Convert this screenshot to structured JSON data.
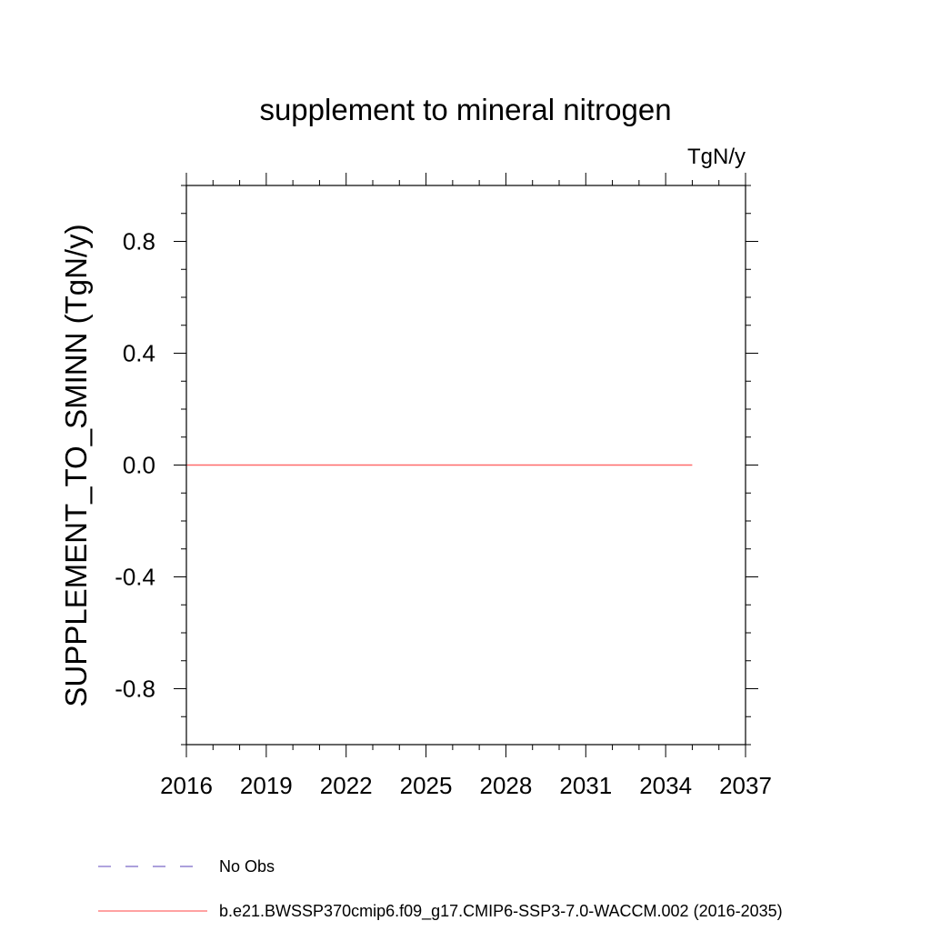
{
  "chart_data": {
    "type": "line",
    "title": "supplement to mineral nitrogen",
    "units": "TgN/y",
    "xlabel": "",
    "ylabel": "SUPPLEMENT_TO_SMINN  (TgN/y)",
    "xlim": [
      2016,
      2037
    ],
    "ylim": [
      -1.0,
      1.0
    ],
    "x_ticks": [
      2016,
      2019,
      2022,
      2025,
      2028,
      2031,
      2034,
      2037
    ],
    "x_tick_labels": [
      "2016",
      "2019",
      "2022",
      "2025",
      "2028",
      "2031",
      "2034",
      "2037"
    ],
    "y_ticks": [
      0.8,
      0.4,
      0.0,
      -0.4,
      -0.8
    ],
    "y_tick_labels": [
      "0.8",
      "0.4",
      "0.0",
      "-0.4",
      "-0.8"
    ],
    "grid": false,
    "series": [
      {
        "name": "b.e21.BWSSP370cmip6.f09_g17.CMIP6-SSP3-7.0-WACCM.002 (2016-2035)",
        "color": "#ff6a6a",
        "dash": "solid",
        "x": [
          2016,
          2017,
          2018,
          2019,
          2020,
          2021,
          2022,
          2023,
          2024,
          2025,
          2026,
          2027,
          2028,
          2029,
          2030,
          2031,
          2032,
          2033,
          2034,
          2035
        ],
        "values": [
          0,
          0,
          0,
          0,
          0,
          0,
          0,
          0,
          0,
          0,
          0,
          0,
          0,
          0,
          0,
          0,
          0,
          0,
          0,
          0
        ]
      }
    ],
    "legend": [
      {
        "label": "No Obs",
        "color": "#7b68c8",
        "dash": "dashed"
      },
      {
        "label": "b.e21.BWSSP370cmip6.f09_g17.CMIP6-SSP3-7.0-WACCM.002 (2016-2035)",
        "color": "#ff6a6a",
        "dash": "solid"
      }
    ],
    "legend_position": "bottom"
  }
}
